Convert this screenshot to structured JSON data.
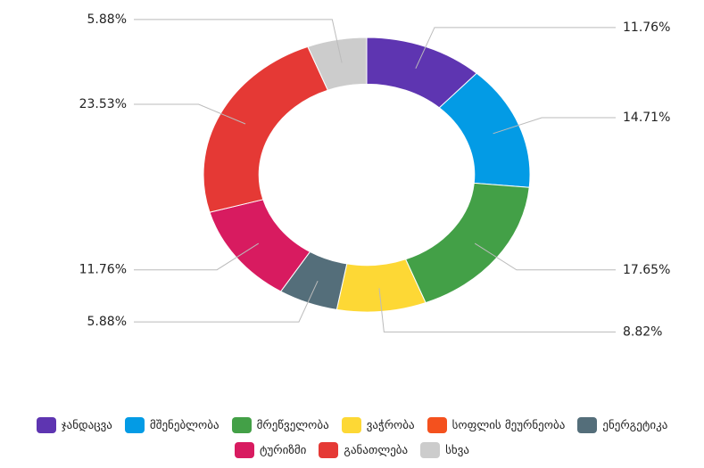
{
  "chart_data": {
    "type": "donut",
    "categories": [
      "ჯანდაცვა",
      "მშენებლობა",
      "მრეწველობა",
      "ვაჭრობა",
      "სოფლის მეურნეობა",
      "ენერგეტიკა",
      "ტურიზმი",
      "განათლება",
      "სხვა"
    ],
    "values": [
      11.76,
      14.71,
      17.65,
      8.82,
      0,
      5.88,
      11.76,
      23.53,
      5.88
    ],
    "value_labels": [
      "11.76%",
      "14.71%",
      "17.65%",
      "8.82%",
      null,
      "5.88%",
      "11.76%",
      "23.53%",
      "5.88%"
    ],
    "colors": [
      "#5e35b1",
      "#039be5",
      "#43a047",
      "#fdd835",
      "#f4511e",
      "#546e7a",
      "#d81b60",
      "#e53935",
      "#cccccc"
    ],
    "legend": "bottom"
  }
}
